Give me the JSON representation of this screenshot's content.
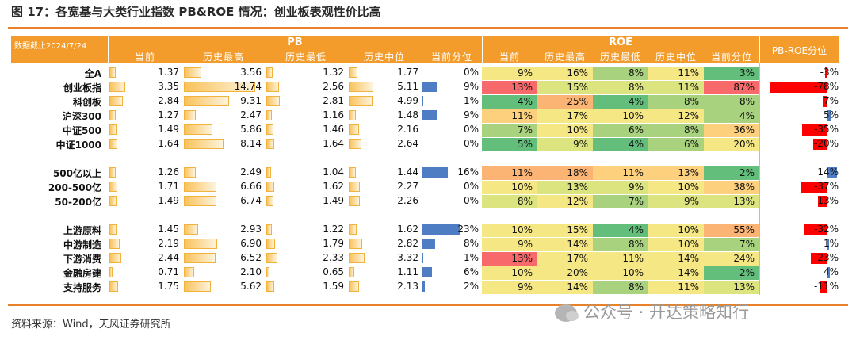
{
  "title": "图 17：各宽基与大类行业指数 PB&ROE 情况：创业板表观性价比高",
  "header": {
    "date_note": "数据截止2024/7/24",
    "pb_label": "PB",
    "roe_label": "ROE",
    "pbroe_label": "PB-ROE分位",
    "pb_cols": [
      "当前",
      "历史最高",
      "历史最低",
      "历史中位",
      "当前分位"
    ],
    "roe_cols": [
      "当前",
      "历史最高",
      "历史最低",
      "历史中位",
      "当前分位"
    ]
  },
  "colors": {
    "orange": "#f39c2b",
    "blue": "#4e7dc4",
    "red": "#ff0000"
  },
  "rows": [
    {
      "name": "全A",
      "pb": [
        "1.37",
        "3.56",
        "1.32",
        "1.77",
        "0%"
      ],
      "pbq": 0,
      "roe": [
        "9%",
        "16%",
        "8%",
        "11%",
        "3%"
      ],
      "pbroe": "-3%",
      "pbroe_v": -3
    },
    {
      "name": "创业板指",
      "pb": [
        "3.35",
        "14.74",
        "2.56",
        "5.11",
        "9%"
      ],
      "pbq": 9,
      "roe": [
        "13%",
        "15%",
        "8%",
        "11%",
        "87%"
      ],
      "pbroe": "-78%",
      "pbroe_v": -78
    },
    {
      "name": "科创板",
      "pb": [
        "2.84",
        "9.31",
        "2.81",
        "4.99",
        "1%"
      ],
      "pbq": 1,
      "roe": [
        "4%",
        "25%",
        "4%",
        "8%",
        "8%"
      ],
      "pbroe": "-7%",
      "pbroe_v": -7
    },
    {
      "name": "沪深300",
      "pb": [
        "1.27",
        "2.47",
        "1.16",
        "1.48",
        "9%"
      ],
      "pbq": 9,
      "roe": [
        "11%",
        "17%",
        "10%",
        "12%",
        "4%"
      ],
      "pbroe": "5%",
      "pbroe_v": 5
    },
    {
      "name": "中证500",
      "pb": [
        "1.49",
        "5.86",
        "1.46",
        "2.16",
        "0%"
      ],
      "pbq": 0,
      "roe": [
        "7%",
        "10%",
        "6%",
        "8%",
        "36%"
      ],
      "pbroe": "-35%",
      "pbroe_v": -35
    },
    {
      "name": "中证1000",
      "pb": [
        "1.64",
        "8.14",
        "1.64",
        "2.64",
        "0%"
      ],
      "pbq": 0,
      "roe": [
        "5%",
        "9%",
        "4%",
        "6%",
        "20%"
      ],
      "pbroe": "-20%",
      "pbroe_v": -20
    },
    {
      "name": "500亿以上",
      "pb": [
        "1.26",
        "2.49",
        "1.04",
        "1.44",
        "16%"
      ],
      "pbq": 16,
      "roe": [
        "11%",
        "18%",
        "11%",
        "13%",
        "2%"
      ],
      "pbroe": "14%",
      "pbroe_v": 14
    },
    {
      "name": "200-500亿",
      "pb": [
        "1.71",
        "6.66",
        "1.62",
        "2.27",
        "0%"
      ],
      "pbq": 0,
      "roe": [
        "10%",
        "13%",
        "9%",
        "10%",
        "38%"
      ],
      "pbroe": "-37%",
      "pbroe_v": -37
    },
    {
      "name": "50-200亿",
      "pb": [
        "1.49",
        "6.74",
        "1.49",
        "2.26",
        "0%"
      ],
      "pbq": 0,
      "roe": [
        "8%",
        "12%",
        "7%",
        "9%",
        "13%"
      ],
      "pbroe": "-13%",
      "pbroe_v": -13
    },
    {
      "name": "上游原料",
      "pb": [
        "1.45",
        "2.93",
        "1.22",
        "1.62",
        "23%"
      ],
      "pbq": 23,
      "roe": [
        "10%",
        "15%",
        "4%",
        "10%",
        "55%"
      ],
      "pbroe": "-32%",
      "pbroe_v": -32
    },
    {
      "name": "中游制造",
      "pb": [
        "2.19",
        "6.90",
        "1.79",
        "2.82",
        "8%"
      ],
      "pbq": 8,
      "roe": [
        "9%",
        "14%",
        "8%",
        "10%",
        "7%"
      ],
      "pbroe": "1%",
      "pbroe_v": 1
    },
    {
      "name": "下游消费",
      "pb": [
        "2.44",
        "6.52",
        "2.33",
        "3.32",
        "1%"
      ],
      "pbq": 1,
      "roe": [
        "13%",
        "17%",
        "11%",
        "14%",
        "24%"
      ],
      "pbroe": "-23%",
      "pbroe_v": -23
    },
    {
      "name": "金融房建",
      "pb": [
        "0.71",
        "2.10",
        "0.65",
        "1.11",
        "6%"
      ],
      "pbq": 6,
      "roe": [
        "10%",
        "20%",
        "10%",
        "14%",
        "2%"
      ],
      "pbroe": "4%",
      "pbroe_v": 4
    },
    {
      "name": "支持服务",
      "pb": [
        "1.75",
        "5.62",
        "1.59",
        "2.13",
        "2%"
      ],
      "pbq": 2,
      "roe": [
        "9%",
        "14%",
        "8%",
        "11%",
        "13%"
      ],
      "pbroe": "-11%",
      "pbroe_v": -11
    }
  ],
  "source": "资料来源：Wind，天风证券研究所",
  "watermark": "公众号 · 开达策略知行"
}
